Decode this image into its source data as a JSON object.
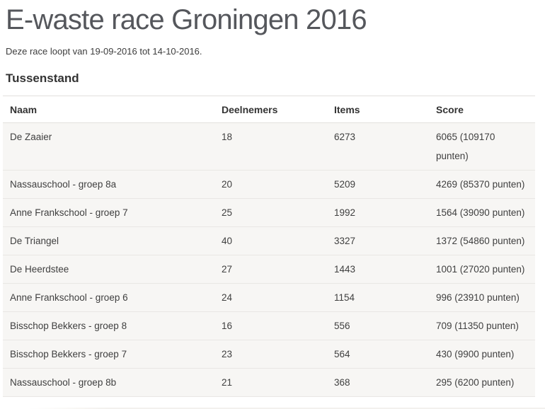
{
  "page": {
    "title": "E-waste race Groningen 2016",
    "subtitle": "Deze race loopt van 19-09-2016 tot 14-10-2016.",
    "section_heading": "Tussenstand"
  },
  "colors": {
    "title_text": "#55575c",
    "body_text": "#3d3d3d",
    "row_background": "#f7f6f4",
    "row_border": "#e9e7e4",
    "header_border": "#e2e0dd"
  },
  "table": {
    "columns": [
      "Naam",
      "Deelnemers",
      "Items",
      "Score"
    ],
    "rows": [
      {
        "naam": "De Zaaier",
        "deelnemers": "18",
        "items": "6273",
        "score": "6065 (109170 punten)"
      },
      {
        "naam": "Nassauschool - groep 8a",
        "deelnemers": "20",
        "items": "5209",
        "score": "4269 (85370 punten)"
      },
      {
        "naam": "Anne Frankschool - groep 7",
        "deelnemers": "25",
        "items": "1992",
        "score": "1564 (39090 punten)"
      },
      {
        "naam": "De Triangel",
        "deelnemers": "40",
        "items": "3327",
        "score": "1372 (54860 punten)"
      },
      {
        "naam": "De Heerdstee",
        "deelnemers": "27",
        "items": "1443",
        "score": "1001 (27020 punten)"
      },
      {
        "naam": "Anne Frankschool - groep 6",
        "deelnemers": "24",
        "items": "1154",
        "score": "996 (23910 punten)"
      },
      {
        "naam": "Bisschop Bekkers - groep 8",
        "deelnemers": "16",
        "items": "556",
        "score": "709 (11350 punten)"
      },
      {
        "naam": "Bisschop Bekkers - groep 7",
        "deelnemers": "23",
        "items": "564",
        "score": "430 (9900 punten)"
      },
      {
        "naam": "Nassauschool - groep 8b",
        "deelnemers": "21",
        "items": "368",
        "score": "295 (6200 punten)"
      }
    ]
  }
}
